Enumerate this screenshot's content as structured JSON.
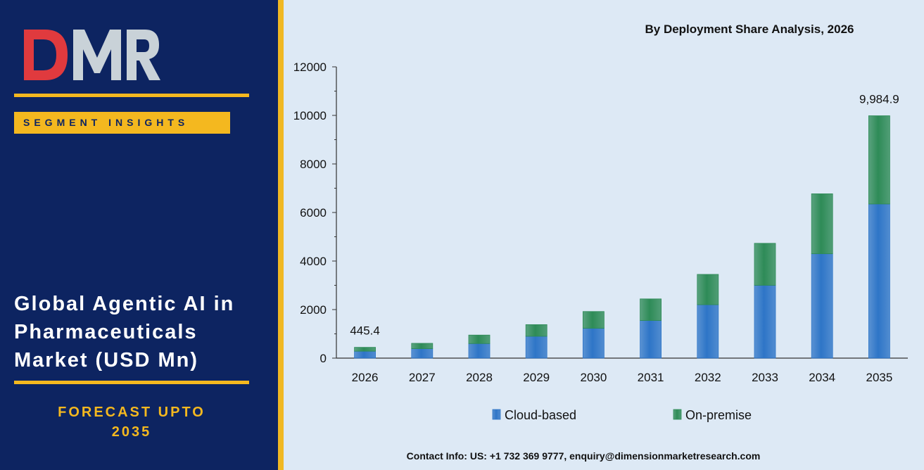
{
  "brand": {
    "logo_text": "DMR"
  },
  "left_panel": {
    "badge": "SEGMENT INSIGHTS",
    "title_lines": [
      "Global Agentic AI in",
      "Pharmaceuticals",
      "Market (USD Mn)"
    ],
    "forecast_lines": [
      "FORECAST UPTO",
      "2035"
    ]
  },
  "chart_data": {
    "type": "bar",
    "stacked": true,
    "title": "By Deployment Share Analysis, 2026",
    "categories": [
      "2026",
      "2027",
      "2028",
      "2029",
      "2030",
      "2031",
      "2032",
      "2033",
      "2034",
      "2035"
    ],
    "series": [
      {
        "name": "Cloud-based",
        "color": "#2e75c7",
        "values": [
          285,
          390,
          600,
          900,
          1230,
          1550,
          2200,
          3000,
          4300,
          6350
        ]
      },
      {
        "name": "On-premise",
        "color": "#2e8b57",
        "values": [
          160,
          220,
          350,
          480,
          690,
          890,
          1250,
          1730,
          2470,
          3635
        ]
      }
    ],
    "data_labels": [
      {
        "category": "2026",
        "text": "445.4"
      },
      {
        "category": "2035",
        "text": "9,984.9"
      }
    ],
    "yticks": [
      "0",
      "2000",
      "4000",
      "6000",
      "8000",
      "10000",
      "12000"
    ],
    "ylim": [
      0,
      12000
    ],
    "legend_position": "bottom",
    "grid": false
  },
  "footer": {
    "contact": "Contact Info: US: +1 732 369 9777, enquiry@dimensionmarketresearch.com"
  }
}
